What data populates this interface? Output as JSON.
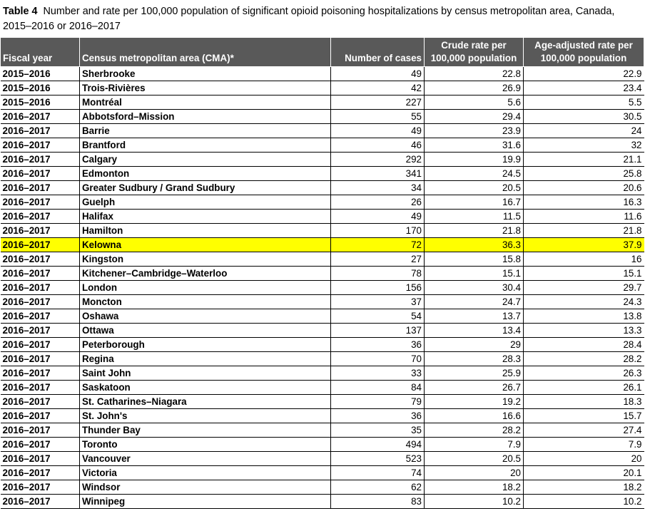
{
  "caption": {
    "label": "Table 4",
    "text": "Number and rate per 100,000 population of significant opioid poisoning hospitalizations by census metropolitan area, Canada, 2015–2016 or 2016–2017"
  },
  "headers": {
    "fiscal_year": "Fiscal year",
    "cma": "Census metropolitan area (CMA)*",
    "cases": "Number of cases",
    "crude": "Crude rate per 100,000 population",
    "age_adj": "Age-adjusted rate per 100,000 population"
  },
  "highlight_color": "#ffff00",
  "header_color": "#595959",
  "rows": [
    {
      "year": "2015–2016",
      "cma": "Sherbrooke",
      "cases": "49",
      "crude": "22.8",
      "adj": "22.9"
    },
    {
      "year": "2015–2016",
      "cma": "Trois-Rivières",
      "cases": "42",
      "crude": "26.9",
      "adj": "23.4"
    },
    {
      "year": "2015–2016",
      "cma": "Montréal",
      "cases": "227",
      "crude": "5.6",
      "adj": "5.5"
    },
    {
      "year": "2016–2017",
      "cma": "Abbotsford–Mission",
      "cases": "55",
      "crude": "29.4",
      "adj": "30.5"
    },
    {
      "year": "2016–2017",
      "cma": "Barrie",
      "cases": "49",
      "crude": "23.9",
      "adj": "24"
    },
    {
      "year": "2016–2017",
      "cma": "Brantford",
      "cases": "46",
      "crude": "31.6",
      "adj": "32"
    },
    {
      "year": "2016–2017",
      "cma": "Calgary",
      "cases": "292",
      "crude": "19.9",
      "adj": "21.1"
    },
    {
      "year": "2016–2017",
      "cma": "Edmonton",
      "cases": "341",
      "crude": "24.5",
      "adj": "25.8"
    },
    {
      "year": "2016–2017",
      "cma": "Greater Sudbury / Grand Sudbury",
      "cases": "34",
      "crude": "20.5",
      "adj": "20.6"
    },
    {
      "year": "2016–2017",
      "cma": "Guelph",
      "cases": "26",
      "crude": "16.7",
      "adj": "16.3"
    },
    {
      "year": "2016–2017",
      "cma": "Halifax",
      "cases": "49",
      "crude": "11.5",
      "adj": "11.6"
    },
    {
      "year": "2016–2017",
      "cma": "Hamilton",
      "cases": "170",
      "crude": "21.8",
      "adj": "21.8"
    },
    {
      "year": "2016–2017",
      "cma": "Kelowna",
      "cases": "72",
      "crude": "36.3",
      "adj": "37.9",
      "highlight": true
    },
    {
      "year": "2016–2017",
      "cma": "Kingston",
      "cases": "27",
      "crude": "15.8",
      "adj": "16"
    },
    {
      "year": "2016–2017",
      "cma": "Kitchener–Cambridge–Waterloo",
      "cases": "78",
      "crude": "15.1",
      "adj": "15.1"
    },
    {
      "year": "2016–2017",
      "cma": "London",
      "cases": "156",
      "crude": "30.4",
      "adj": "29.7"
    },
    {
      "year": "2016–2017",
      "cma": "Moncton",
      "cases": "37",
      "crude": "24.7",
      "adj": "24.3"
    },
    {
      "year": "2016–2017",
      "cma": "Oshawa",
      "cases": "54",
      "crude": "13.7",
      "adj": "13.8"
    },
    {
      "year": "2016–2017",
      "cma": "Ottawa",
      "cases": "137",
      "crude": "13.4",
      "adj": "13.3"
    },
    {
      "year": "2016–2017",
      "cma": "Peterborough",
      "cases": "36",
      "crude": "29",
      "adj": "28.4"
    },
    {
      "year": "2016–2017",
      "cma": "Regina",
      "cases": "70",
      "crude": "28.3",
      "adj": "28.2"
    },
    {
      "year": "2016–2017",
      "cma": "Saint John",
      "cases": "33",
      "crude": "25.9",
      "adj": "26.3"
    },
    {
      "year": "2016–2017",
      "cma": "Saskatoon",
      "cases": "84",
      "crude": "26.7",
      "adj": "26.1"
    },
    {
      "year": "2016–2017",
      "cma": "St. Catharines–Niagara",
      "cases": "79",
      "crude": "19.2",
      "adj": "18.3"
    },
    {
      "year": "2016–2017",
      "cma": "St. John's",
      "cases": "36",
      "crude": "16.6",
      "adj": "15.7"
    },
    {
      "year": "2016–2017",
      "cma": "Thunder Bay",
      "cases": "35",
      "crude": "28.2",
      "adj": "27.4"
    },
    {
      "year": "2016–2017",
      "cma": "Toronto",
      "cases": "494",
      "crude": "7.9",
      "adj": "7.9"
    },
    {
      "year": "2016–2017",
      "cma": "Vancouver",
      "cases": "523",
      "crude": "20.5",
      "adj": "20"
    },
    {
      "year": "2016–2017",
      "cma": "Victoria",
      "cases": "74",
      "crude": "20",
      "adj": "20.1"
    },
    {
      "year": "2016–2017",
      "cma": "Windsor",
      "cases": "62",
      "crude": "18.2",
      "adj": "18.2"
    },
    {
      "year": "2016–2017",
      "cma": "Winnipeg",
      "cases": "83",
      "crude": "10.2",
      "adj": "10.2"
    }
  ]
}
